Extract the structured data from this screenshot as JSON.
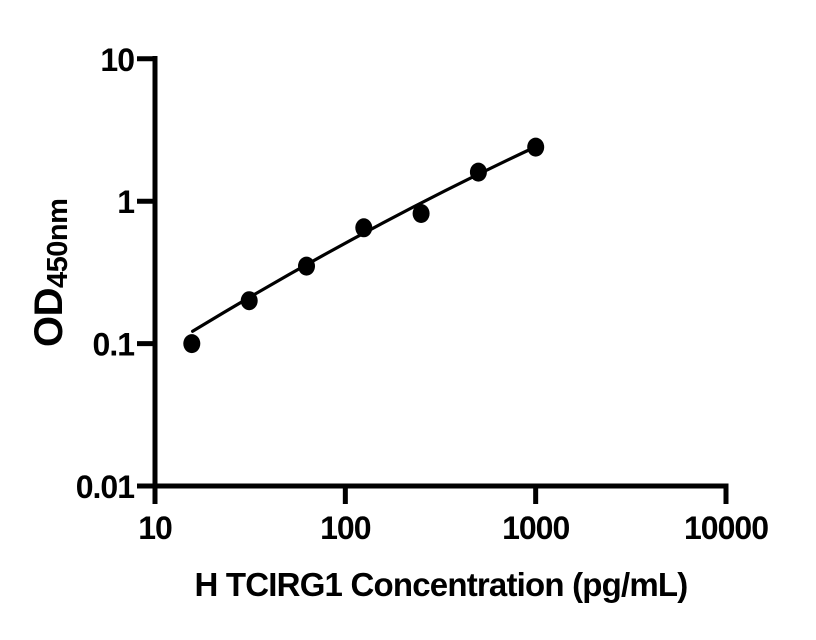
{
  "figure": {
    "background": "#ffffff",
    "foreground": "#000000"
  },
  "chart_data": {
    "type": "scatter",
    "subtype": "elisa-standard-curve",
    "title": "",
    "xlabel": "H TCIRG1 Concentration (pg/mL)",
    "ylabel_main": "OD",
    "ylabel_sub": "450nm",
    "x_scale": "log10",
    "y_scale": "log10",
    "xlim": [
      10,
      10000
    ],
    "ylim": [
      0.01,
      10
    ],
    "grid": false,
    "x_ticks": [
      {
        "value": 10,
        "label": "10"
      },
      {
        "value": 100,
        "label": "100"
      },
      {
        "value": 1000,
        "label": "1000"
      },
      {
        "value": 10000,
        "label": "10000"
      }
    ],
    "y_ticks": [
      {
        "value": 10,
        "label": "10"
      },
      {
        "value": 1,
        "label": "1"
      },
      {
        "value": 0.1,
        "label": "0.1"
      },
      {
        "value": 0.01,
        "label": "0.01"
      }
    ],
    "series": [
      {
        "name": "standard-points",
        "marker": "filled-circle",
        "color": "#000000",
        "points": [
          {
            "x": 15.6,
            "y": 0.1
          },
          {
            "x": 31.25,
            "y": 0.2
          },
          {
            "x": 62.5,
            "y": 0.35
          },
          {
            "x": 125,
            "y": 0.65
          },
          {
            "x": 250,
            "y": 0.82
          },
          {
            "x": 500,
            "y": 1.6
          },
          {
            "x": 1000,
            "y": 2.4
          }
        ]
      }
    ],
    "trend_line": {
      "color": "#000000",
      "points": [
        {
          "x": 15.76,
          "y": 0.122
        },
        {
          "x": 126,
          "y": 0.6
        },
        {
          "x": 1008,
          "y": 2.42
        }
      ]
    }
  }
}
